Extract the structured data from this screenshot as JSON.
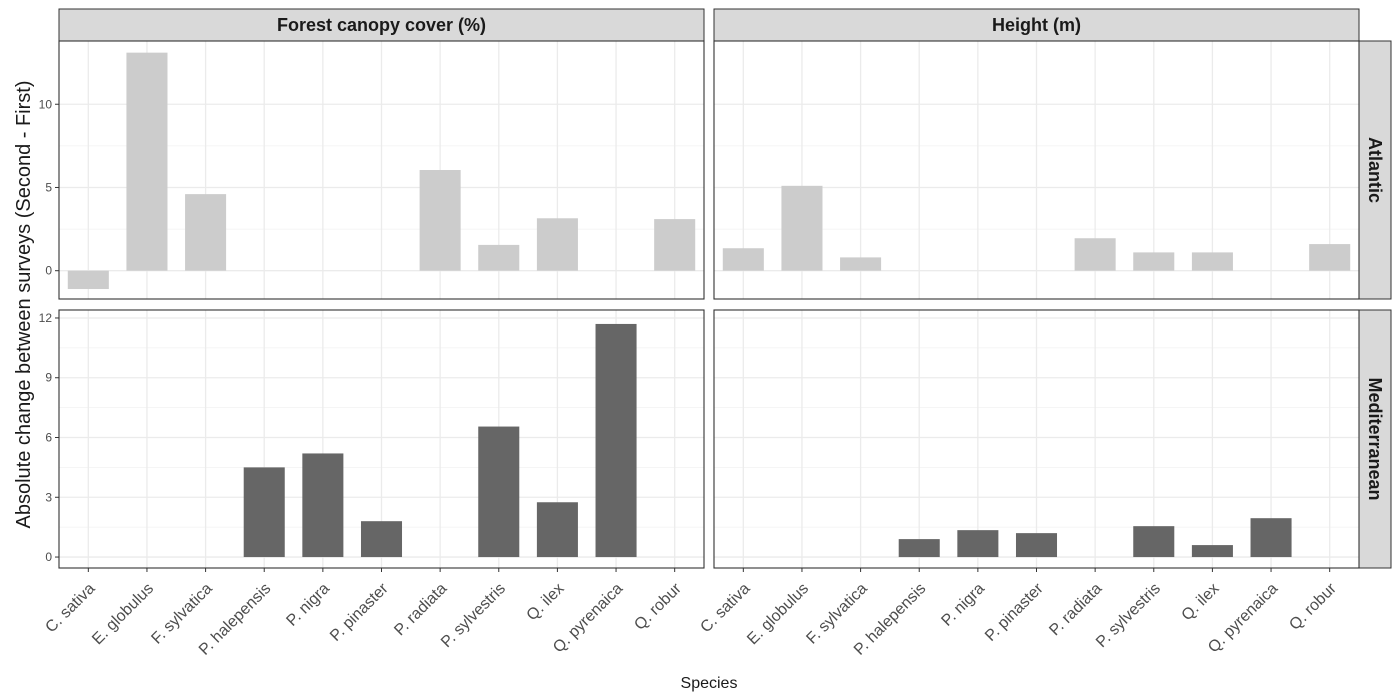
{
  "chart_data": {
    "type": "bar",
    "layout": "facet-grid",
    "xlabel": "Species",
    "ylabel": "Absolute change between surveys (Second - First)",
    "categories": [
      "C. sativa",
      "E. globulus",
      "F. sylvatica",
      "P. halepensis",
      "P. nigra",
      "P. pinaster",
      "P. radiata",
      "P. sylvestris",
      "Q. ilex",
      "Q. pyrenaica",
      "Q. robur"
    ],
    "columns": [
      "Forest canopy cover (%)",
      "Height (m)"
    ],
    "rows": [
      {
        "name": "Atlantic",
        "ylim": [
          -1.7,
          13.8
        ],
        "yticks": [
          0,
          5,
          10
        ],
        "color": "#cccccc"
      },
      {
        "name": "Mediterranean",
        "ylim": [
          -0.55,
          12.4
        ],
        "yticks": [
          0,
          3,
          6,
          9,
          12
        ],
        "color": "#666666"
      }
    ],
    "panels": [
      {
        "row": "Atlantic",
        "column": "Forest canopy cover (%)",
        "values": [
          -1.1,
          13.1,
          4.6,
          null,
          null,
          null,
          6.05,
          1.55,
          3.15,
          null,
          3.1
        ]
      },
      {
        "row": "Atlantic",
        "column": "Height (m)",
        "values": [
          1.35,
          5.1,
          0.8,
          null,
          null,
          null,
          1.95,
          1.1,
          1.1,
          null,
          1.6
        ]
      },
      {
        "row": "Mediterranean",
        "column": "Forest canopy cover (%)",
        "values": [
          null,
          null,
          null,
          4.5,
          5.2,
          1.8,
          null,
          6.55,
          2.75,
          11.7,
          null
        ]
      },
      {
        "row": "Mediterranean",
        "column": "Height (m)",
        "values": [
          null,
          null,
          null,
          0.9,
          1.35,
          1.2,
          null,
          1.55,
          0.6,
          1.95,
          null
        ]
      }
    ],
    "grid": true,
    "legend": "none"
  }
}
